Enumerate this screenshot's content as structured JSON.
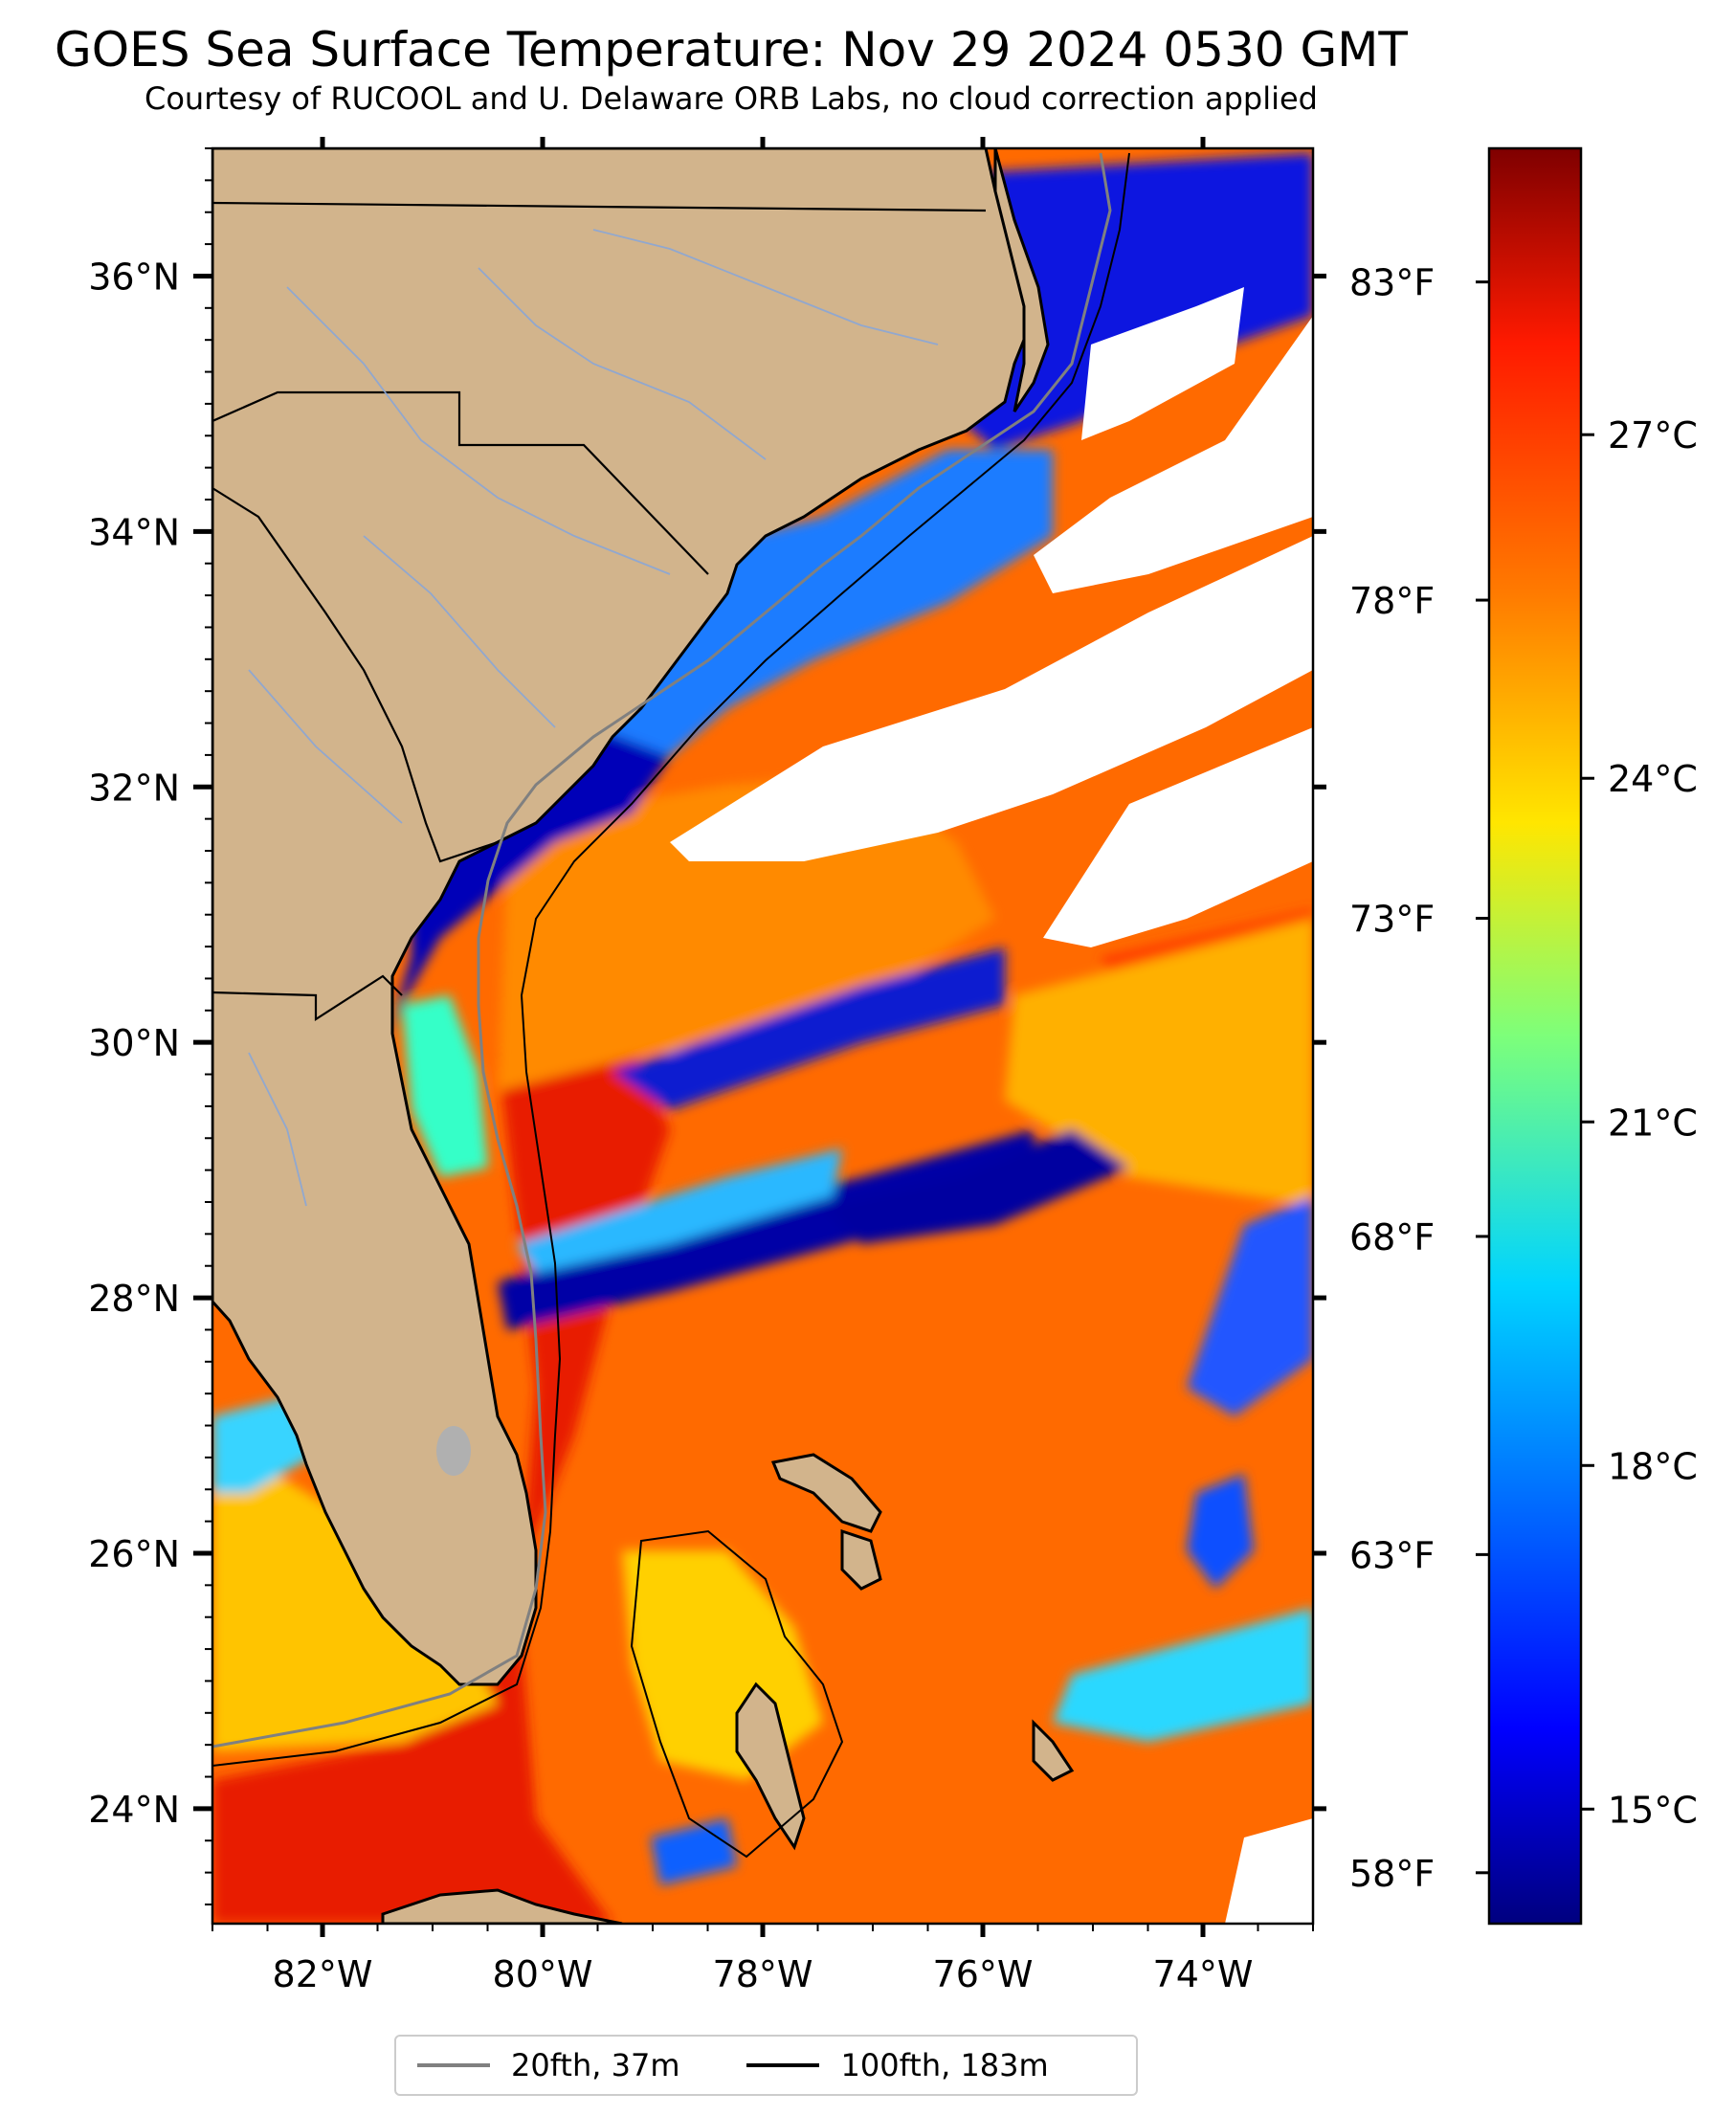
{
  "title": "GOES Sea Surface Temperature: Nov 29 2024 0530 GMT",
  "subtitle": "Courtesy of RUCOOL and U. Delaware ORB Labs, no cloud correction applied",
  "map": {
    "lon_range": [
      -83,
      -73
    ],
    "lat_range": [
      23.1,
      37
    ],
    "land_color": "#d2b48c",
    "cloud_color": "#ffffff",
    "x_ticks": [
      {
        "lon": -82,
        "label": "82°W"
      },
      {
        "lon": -80,
        "label": "80°W"
      },
      {
        "lon": -78,
        "label": "78°W"
      },
      {
        "lon": -76,
        "label": "76°W"
      },
      {
        "lon": -74,
        "label": "74°W"
      }
    ],
    "y_ticks": [
      {
        "lat": 36,
        "label": "36°N"
      },
      {
        "lat": 34,
        "label": "34°N"
      },
      {
        "lat": 32,
        "label": "32°N"
      },
      {
        "lat": 30,
        "label": "30°N"
      },
      {
        "lat": 28,
        "label": "28°N"
      },
      {
        "lat": 26,
        "label": "26°N"
      },
      {
        "lat": 24,
        "label": "24°N"
      }
    ]
  },
  "colorbar": {
    "colormap": "jet",
    "range_c": [
      14,
      29.5
    ],
    "ticks_c": [
      {
        "value": 15,
        "label": "15°C"
      },
      {
        "value": 18,
        "label": "18°C"
      },
      {
        "value": 21,
        "label": "21°C"
      },
      {
        "value": 24,
        "label": "24°C"
      },
      {
        "value": 27,
        "label": "27°C"
      }
    ],
    "ticks_f": [
      {
        "value": 58,
        "label": "58°F"
      },
      {
        "value": 63,
        "label": "63°F"
      },
      {
        "value": 68,
        "label": "68°F"
      },
      {
        "value": 73,
        "label": "73°F"
      },
      {
        "value": 78,
        "label": "78°F"
      },
      {
        "value": 83,
        "label": "83°F"
      }
    ]
  },
  "legend": {
    "items": [
      {
        "label": "20fth, 37m",
        "color": "#808080"
      },
      {
        "label": "100fth, 183m",
        "color": "#000000"
      }
    ]
  }
}
